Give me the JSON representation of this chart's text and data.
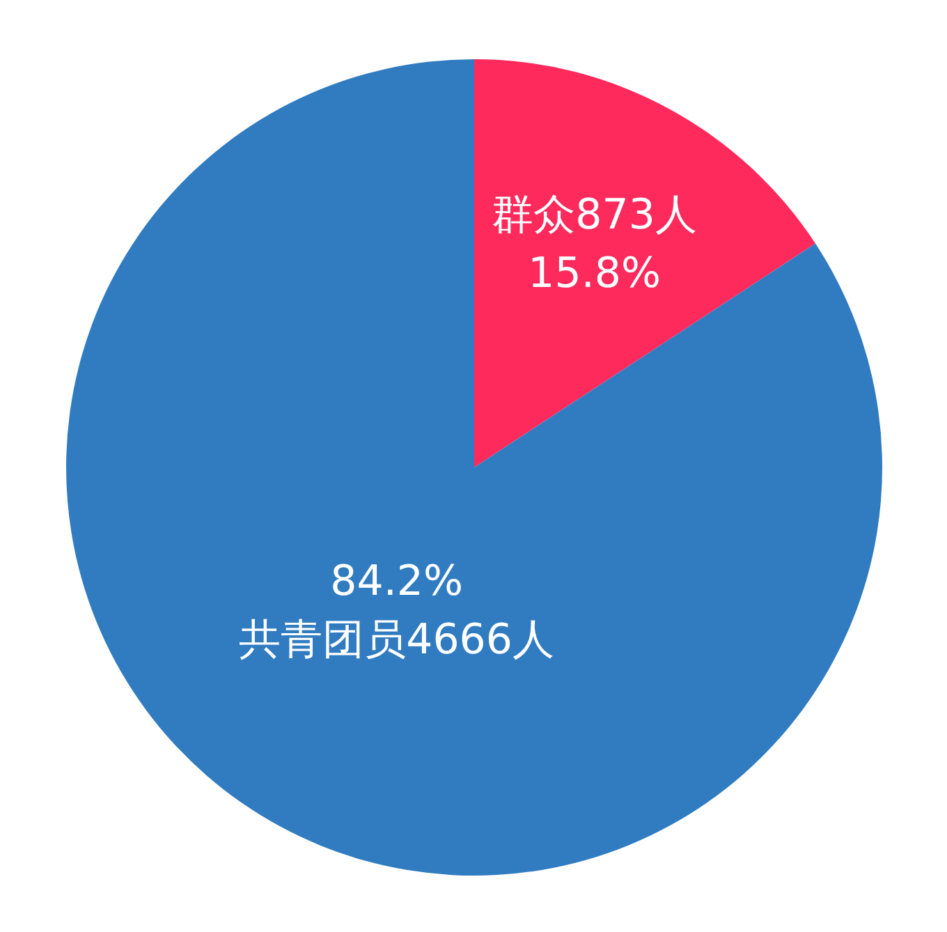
{
  "chart_data": {
    "type": "pie",
    "categories": [
      "群众",
      "共青团员"
    ],
    "values": [
      873,
      4666
    ],
    "colors": [
      "#fe2a5c",
      "#317cc1"
    ],
    "value_labels": [
      "873人",
      "4666人"
    ],
    "annotations": [
      "15.8%",
      "84.2%"
    ],
    "legend": false
  }
}
